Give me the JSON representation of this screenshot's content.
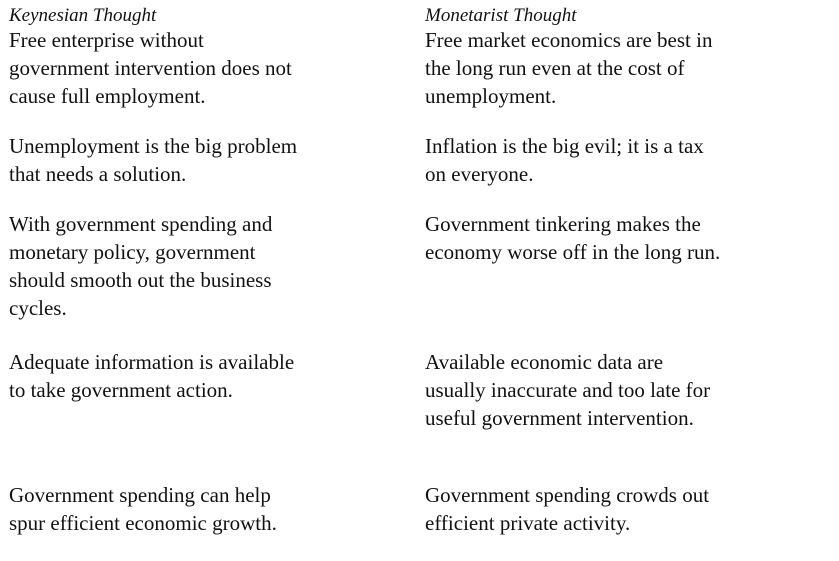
{
  "columns": [
    {
      "heading": "Keynesian Thought",
      "rows": [
        "Free enterprise without\ngovernment intervention does not\ncause full employment.",
        "Unemployment is the big problem\nthat needs a solution.",
        "With government spending and\nmonetary policy, government\nshould smooth out the business\ncycles.",
        "Adequate information is available\nto take government action.",
        "Government spending can help\nspur efficient economic growth."
      ]
    },
    {
      "heading": "Monetarist Thought",
      "rows": [
        "Free market economics are best in\nthe long run even at the cost of\nunemployment.",
        "Inflation is the big evil; it is a tax\non everyone.",
        "Government tinkering makes the\neconomy worse off in the long run.",
        "Available economic data are\nusually inaccurate and too late for\nuseful government intervention.",
        "Government spending crowds out\nefficient private activity."
      ]
    }
  ]
}
